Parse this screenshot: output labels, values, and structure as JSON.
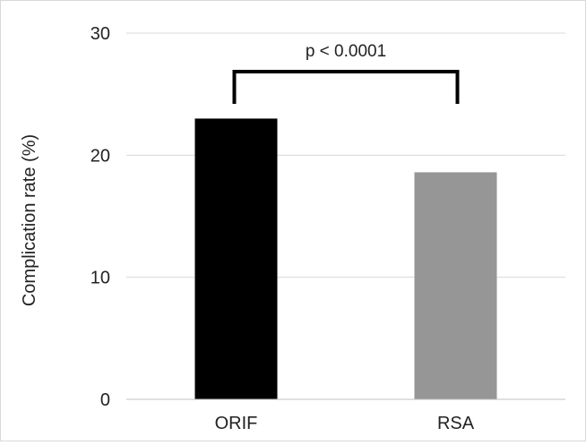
{
  "chart_data": {
    "type": "bar",
    "title": "",
    "xlabel": "",
    "ylabel": "Complication rate (%)",
    "categories": [
      "ORIF",
      "RSA"
    ],
    "values": [
      23.0,
      18.6
    ],
    "bar_colors": [
      "#000000",
      "#969696"
    ],
    "ylim": [
      0,
      30
    ],
    "yticks": [
      "0",
      "10",
      "20",
      "30"
    ],
    "grid": true,
    "annotation": {
      "text": "p < 0.0001",
      "between": [
        "ORIF",
        "RSA"
      ]
    }
  }
}
